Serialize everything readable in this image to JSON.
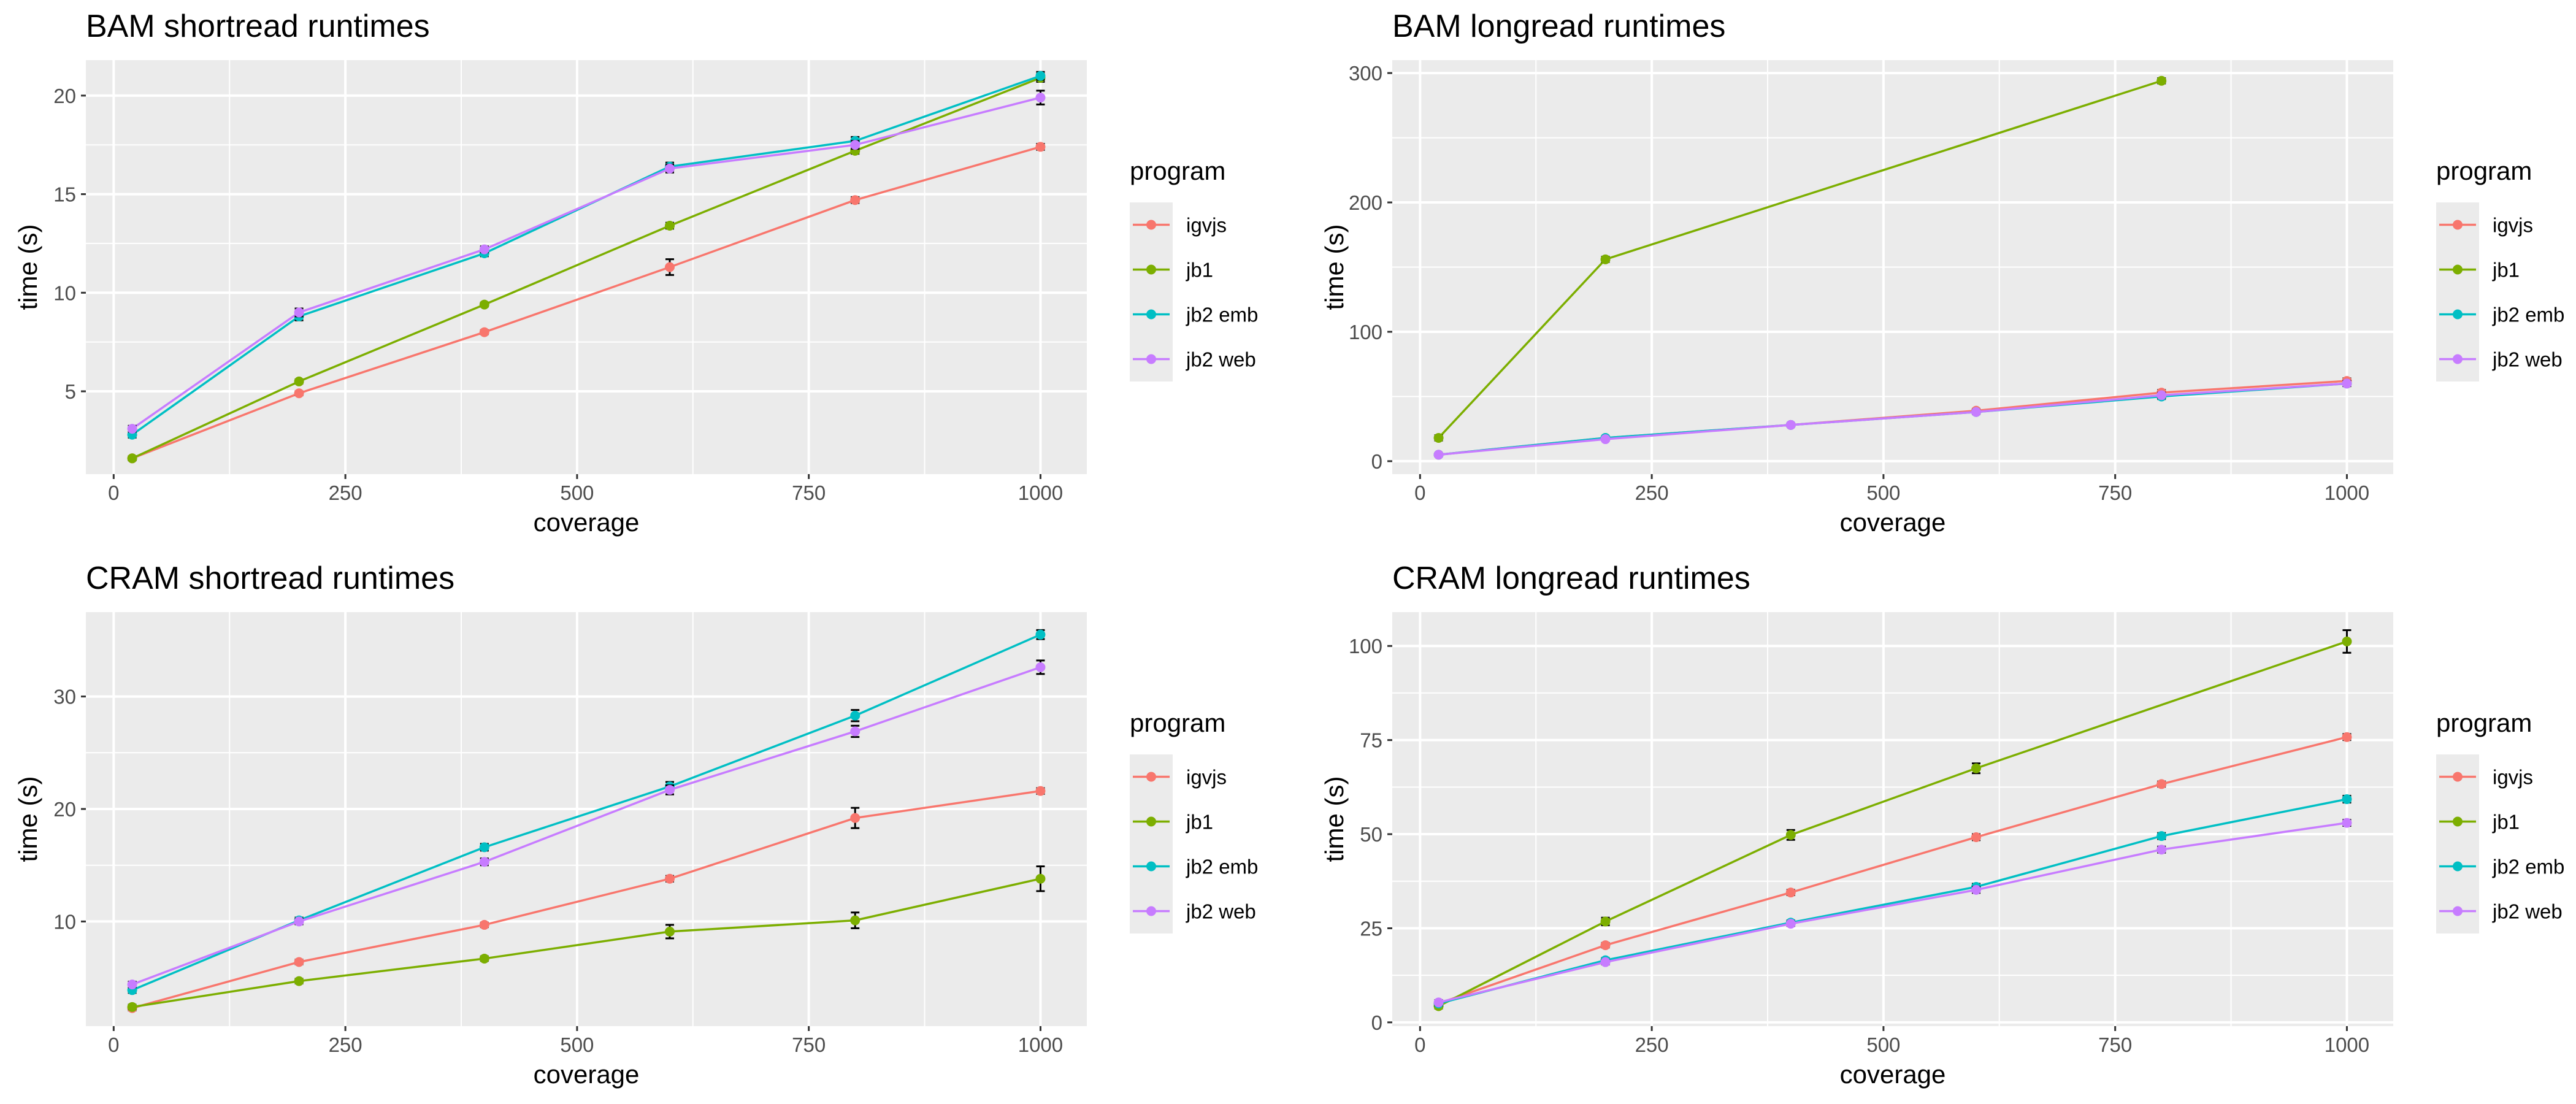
{
  "chart_data": [
    {
      "type": "line",
      "title": "BAM shortread runtimes",
      "xlabel": "coverage",
      "ylabel": "time (s)",
      "xlim": [
        -30,
        1050
      ],
      "ylim": [
        0.8,
        21.8
      ],
      "xticks": [
        0,
        250,
        500,
        750,
        1000
      ],
      "xtick_labels": [
        "0",
        "250",
        "500",
        "750",
        "1000"
      ],
      "yticks": [
        5,
        10,
        15,
        20
      ],
      "ytick_labels": [
        "5",
        "10",
        "15",
        "20"
      ],
      "grid": true,
      "error_bars": true,
      "legend": {
        "title": "program",
        "position": "right"
      },
      "x": [
        20,
        200,
        400,
        600,
        800,
        1000
      ],
      "series": [
        {
          "name": "igvjs",
          "color": "#F8766D",
          "values": [
            1.6,
            4.9,
            8.0,
            11.3,
            14.7,
            17.4
          ],
          "errors": [
            0.1,
            0.1,
            0.1,
            0.4,
            0.15,
            0.15
          ]
        },
        {
          "name": "jb1",
          "color": "#7CAE00",
          "values": [
            1.6,
            5.5,
            9.4,
            13.4,
            17.2,
            20.9
          ],
          "errors": [
            0.1,
            0.1,
            0.1,
            0.15,
            0.15,
            0.2
          ]
        },
        {
          "name": "jb2 emb",
          "color": "#00BFC4",
          "values": [
            2.8,
            8.8,
            12.0,
            16.4,
            17.7,
            21.0
          ],
          "errors": [
            0.15,
            0.2,
            0.15,
            0.2,
            0.2,
            0.2
          ]
        },
        {
          "name": "jb2 web",
          "color": "#C77CFF",
          "values": [
            3.1,
            9.0,
            12.2,
            16.3,
            17.5,
            19.9
          ],
          "errors": [
            0.15,
            0.2,
            0.15,
            0.2,
            0.2,
            0.35
          ]
        }
      ]
    },
    {
      "type": "line",
      "title": "BAM longread runtimes",
      "xlabel": "coverage",
      "ylabel": "time (s)",
      "xlim": [
        -30,
        1050
      ],
      "ylim": [
        -10,
        310
      ],
      "xticks": [
        0,
        250,
        500,
        750,
        1000
      ],
      "xtick_labels": [
        "0",
        "250",
        "500",
        "750",
        "1000"
      ],
      "yticks": [
        0,
        100,
        200,
        300
      ],
      "ytick_labels": [
        "0",
        "100",
        "200",
        "300"
      ],
      "grid": true,
      "error_bars": true,
      "legend": {
        "title": "program",
        "position": "right"
      },
      "x": [
        20,
        200,
        400,
        600,
        800,
        1000
      ],
      "series": [
        {
          "name": "igvjs",
          "color": "#F8766D",
          "values": [
            5,
            18,
            28,
            39,
            53,
            62
          ],
          "errors": [
            0.8,
            1,
            1,
            1.5,
            2,
            2
          ]
        },
        {
          "name": "jb1",
          "color": "#7CAE00",
          "x": [
            20,
            200,
            800
          ],
          "values": [
            18,
            156,
            294
          ],
          "errors": [
            2,
            2,
            2
          ]
        },
        {
          "name": "jb2 emb",
          "color": "#00BFC4",
          "values": [
            5,
            18,
            28,
            38,
            50,
            60
          ],
          "errors": [
            0.8,
            1,
            1,
            1.5,
            2,
            2
          ]
        },
        {
          "name": "jb2 web",
          "color": "#C77CFF",
          "values": [
            5,
            17,
            28,
            38,
            51,
            60
          ],
          "errors": [
            0.8,
            1,
            1,
            1.5,
            2,
            2
          ]
        }
      ]
    },
    {
      "type": "line",
      "title": "CRAM shortread runtimes",
      "xlabel": "coverage",
      "ylabel": "time (s)",
      "xlim": [
        -30,
        1050
      ],
      "ylim": [
        0.7,
        37.5
      ],
      "xticks": [
        0,
        250,
        500,
        750,
        1000
      ],
      "xtick_labels": [
        "0",
        "250",
        "500",
        "750",
        "1000"
      ],
      "yticks": [
        10,
        20,
        30
      ],
      "ytick_labels": [
        "10",
        "20",
        "30"
      ],
      "grid": true,
      "error_bars": true,
      "legend": {
        "title": "program",
        "position": "right"
      },
      "x": [
        20,
        200,
        400,
        600,
        800,
        1000
      ],
      "series": [
        {
          "name": "igvjs",
          "color": "#F8766D",
          "values": [
            2.3,
            6.4,
            9.7,
            13.8,
            19.2,
            21.6
          ],
          "errors": [
            0.2,
            0.2,
            0.2,
            0.25,
            0.9,
            0.25
          ]
        },
        {
          "name": "jb1",
          "color": "#7CAE00",
          "values": [
            2.4,
            4.7,
            6.7,
            9.1,
            10.1,
            13.8
          ],
          "errors": [
            0.2,
            0.2,
            0.2,
            0.6,
            0.7,
            1.1
          ]
        },
        {
          "name": "jb2 emb",
          "color": "#00BFC4",
          "values": [
            3.9,
            10.1,
            16.6,
            22.0,
            28.3,
            35.5
          ],
          "errors": [
            0.25,
            0.25,
            0.3,
            0.4,
            0.5,
            0.4
          ]
        },
        {
          "name": "jb2 web",
          "color": "#C77CFF",
          "values": [
            4.4,
            10.0,
            15.3,
            21.7,
            26.9,
            32.6
          ],
          "errors": [
            0.25,
            0.25,
            0.3,
            0.4,
            0.5,
            0.6
          ]
        }
      ]
    },
    {
      "type": "line",
      "title": "CRAM longread runtimes",
      "xlabel": "coverage",
      "ylabel": "time (s)",
      "xlim": [
        -30,
        1050
      ],
      "ylim": [
        -1,
        109
      ],
      "xticks": [
        0,
        250,
        500,
        750,
        1000
      ],
      "xtick_labels": [
        "0",
        "250",
        "500",
        "750",
        "1000"
      ],
      "yticks": [
        0,
        25,
        50,
        75,
        100
      ],
      "ytick_labels": [
        "0",
        "25",
        "50",
        "75",
        "100"
      ],
      "grid": true,
      "error_bars": true,
      "legend": {
        "title": "program",
        "position": "right"
      },
      "x": [
        20,
        200,
        400,
        600,
        800,
        1000
      ],
      "series": [
        {
          "name": "igvjs",
          "color": "#F8766D",
          "values": [
            5,
            20.5,
            34.5,
            49.2,
            63.3,
            75.8
          ],
          "errors": [
            0.6,
            0.6,
            0.7,
            0.8,
            0.7,
            0.8
          ]
        },
        {
          "name": "jb1",
          "color": "#7CAE00",
          "values": [
            4.3,
            26.8,
            49.8,
            67.5,
            0,
            101.2
          ],
          "present": [
            true,
            true,
            true,
            true,
            false,
            true
          ],
          "errors": [
            0.6,
            1.0,
            1.3,
            1.3,
            0,
            3.0
          ]
        },
        {
          "name": "jb2 emb",
          "color": "#00BFC4",
          "values": [
            5,
            16.5,
            26.5,
            36,
            49.5,
            59.3
          ],
          "errors": [
            0.6,
            0.6,
            0.6,
            0.8,
            0.8,
            0.9
          ]
        },
        {
          "name": "jb2 web",
          "color": "#C77CFF",
          "values": [
            5.3,
            16,
            26.2,
            35.2,
            45.9,
            53
          ],
          "errors": [
            0.6,
            0.6,
            0.6,
            0.8,
            0.8,
            0.8
          ]
        }
      ]
    }
  ]
}
